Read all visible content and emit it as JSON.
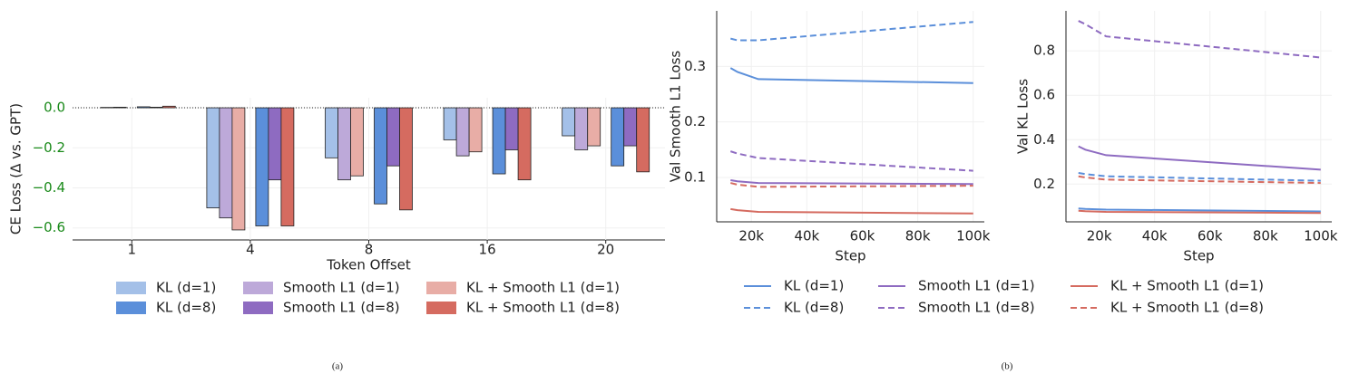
{
  "chart_data": [
    {
      "type": "bar",
      "xlabel": "Token Offset",
      "ylabel": "CE Loss (Δ vs. GPT)",
      "categories": [
        "1",
        "4",
        "8",
        "16",
        "20"
      ],
      "series": [
        {
          "name": "KL (d=1)",
          "color": "#a4c0e8",
          "values": [
            0.0,
            -0.5,
            -0.25,
            -0.16,
            -0.14
          ]
        },
        {
          "name": "Smooth L1 (d=1)",
          "color": "#bda9d9",
          "values": [
            0.002,
            -0.55,
            -0.36,
            -0.24,
            -0.21
          ]
        },
        {
          "name": "KL + Smooth L1 (d=1)",
          "color": "#e8ada6",
          "values": [
            0.003,
            -0.61,
            -0.34,
            -0.22,
            -0.19
          ]
        },
        {
          "name": "KL (d=8)",
          "color": "#5b8fda",
          "values": [
            0.005,
            -0.59,
            -0.48,
            -0.33,
            -0.29
          ]
        },
        {
          "name": "Smooth L1 (d=8)",
          "color": "#8e6bc1",
          "values": [
            0.003,
            -0.36,
            -0.29,
            -0.21,
            -0.19
          ]
        },
        {
          "name": "KL + Smooth L1 (d=8)",
          "color": "#d56b60",
          "values": [
            0.008,
            -0.59,
            -0.51,
            -0.36,
            -0.32
          ]
        }
      ],
      "ylim": [
        -0.66,
        0.05
      ],
      "yticks": [
        {
          "value": 0,
          "label": "0.0"
        },
        {
          "value": -0.2,
          "label": "−0.2"
        },
        {
          "value": -0.4,
          "label": "−0.4"
        },
        {
          "value": -0.6,
          "label": "−0.6"
        }
      ],
      "ytick_color": "#1a8a1a",
      "grid": true,
      "zero_line": true
    },
    {
      "type": "line",
      "xlabel": "Step",
      "ylabel": "Val Smooth L1 Loss",
      "x": [
        12500,
        15000,
        22500,
        100000
      ],
      "series": [
        {
          "name": "KL (d=1)",
          "color": "#5b8fda",
          "dashed": false,
          "values": [
            0.297,
            0.29,
            0.277,
            0.27
          ]
        },
        {
          "name": "Smooth L1 (d=1)",
          "color": "#8e6bc1",
          "dashed": false,
          "values": [
            0.095,
            0.093,
            0.09,
            0.088
          ]
        },
        {
          "name": "KL + Smooth L1 (d=1)",
          "color": "#d56b60",
          "dashed": false,
          "values": [
            0.043,
            0.041,
            0.038,
            0.035
          ]
        },
        {
          "name": "KL (d=8)",
          "color": "#5b8fda",
          "dashed": true,
          "values": [
            0.35,
            0.347,
            0.347,
            0.38
          ]
        },
        {
          "name": "Smooth L1 (d=8)",
          "color": "#8e6bc1",
          "dashed": true,
          "values": [
            0.147,
            0.143,
            0.135,
            0.112
          ]
        },
        {
          "name": "KL + Smooth L1 (d=8)",
          "color": "#d56b60",
          "dashed": true,
          "values": [
            0.09,
            0.087,
            0.083,
            0.085
          ]
        }
      ],
      "xlim": [
        7500,
        104000
      ],
      "ylim": [
        0.02,
        0.4
      ],
      "xticks": [
        {
          "value": 20000,
          "label": "20k"
        },
        {
          "value": 40000,
          "label": "40k"
        },
        {
          "value": 60000,
          "label": "60k"
        },
        {
          "value": 80000,
          "label": "80k"
        },
        {
          "value": 100000,
          "label": "100k"
        }
      ],
      "yticks": [
        0.1,
        0.2,
        0.3
      ],
      "grid": true
    },
    {
      "type": "line",
      "xlabel": "Step",
      "ylabel": "Val KL Loss",
      "x": [
        12500,
        15000,
        22500,
        100000
      ],
      "series": [
        {
          "color": "#5b8fda",
          "dashed": false,
          "values": [
            0.09,
            0.088,
            0.085,
            0.077
          ]
        },
        {
          "color": "#8e6bc1",
          "dashed": false,
          "values": [
            0.37,
            0.355,
            0.33,
            0.265
          ]
        },
        {
          "color": "#d56b60",
          "dashed": false,
          "values": [
            0.08,
            0.078,
            0.075,
            0.07
          ]
        },
        {
          "color": "#5b8fda",
          "dashed": true,
          "values": [
            0.25,
            0.245,
            0.235,
            0.215
          ]
        },
        {
          "color": "#8e6bc1",
          "dashed": true,
          "values": [
            0.935,
            0.92,
            0.865,
            0.77
          ]
        },
        {
          "color": "#d56b60",
          "dashed": true,
          "values": [
            0.235,
            0.23,
            0.22,
            0.205
          ]
        }
      ],
      "xlim": [
        8000,
        104000
      ],
      "ylim": [
        0.03,
        0.98
      ],
      "xticks": [
        {
          "value": 20000,
          "label": "20k"
        },
        {
          "value": 40000,
          "label": "40k"
        },
        {
          "value": 60000,
          "label": "60k"
        },
        {
          "value": 80000,
          "label": "80k"
        },
        {
          "value": 100000,
          "label": "100k"
        }
      ],
      "yticks": [
        0.2,
        0.4,
        0.6,
        0.8
      ],
      "grid": true
    }
  ],
  "captions": [
    "(a)",
    "(b)"
  ]
}
